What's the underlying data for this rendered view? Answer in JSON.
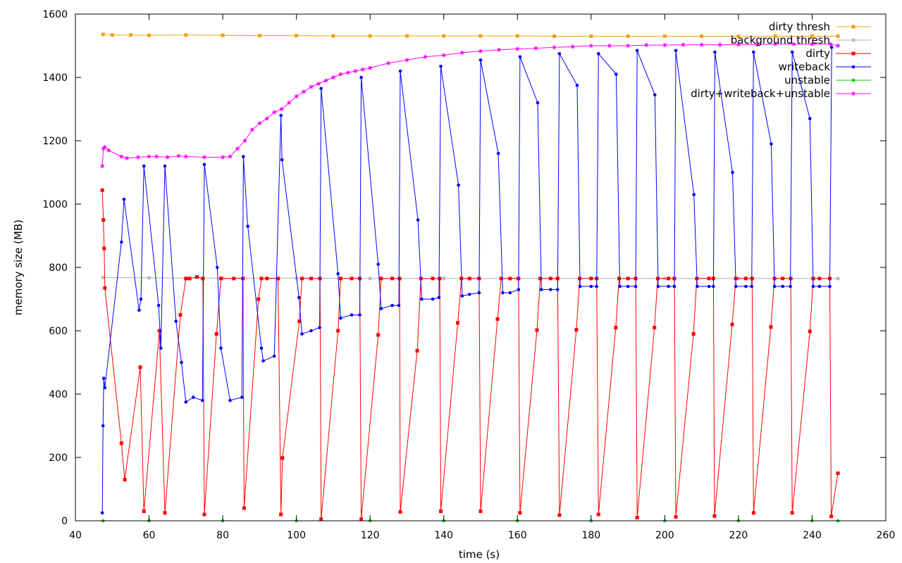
{
  "chart_data": {
    "type": "line",
    "title": "",
    "xlabel": "time (s)",
    "ylabel": "memory size (MB)",
    "xlim": [
      40,
      260
    ],
    "ylim": [
      0,
      1600
    ],
    "xticks": [
      40,
      60,
      80,
      100,
      120,
      140,
      160,
      180,
      200,
      220,
      240,
      260
    ],
    "yticks": [
      0,
      200,
      400,
      600,
      800,
      1000,
      1200,
      1400,
      1600
    ],
    "grid": false,
    "legend_position": "top-right",
    "series": [
      {
        "name": "dirty thresh",
        "color": "#f4a20f",
        "marker": "square",
        "x": [
          47.5,
          50,
          55,
          60,
          70,
          80,
          90,
          100,
          110,
          120,
          130,
          140,
          150,
          160,
          170,
          180,
          190,
          200,
          210,
          220,
          230,
          240,
          247
        ],
        "y": [
          1536,
          1534,
          1534,
          1533,
          1534,
          1533,
          1532,
          1532,
          1531,
          1531,
          1531,
          1531,
          1531,
          1531,
          1530,
          1530,
          1530,
          1530,
          1530,
          1530,
          1530,
          1530,
          1530
        ]
      },
      {
        "name": "background thresh",
        "color": "#b0b0b0",
        "marker": "cross",
        "x": [
          47.5,
          60,
          80,
          100,
          120,
          140,
          160,
          180,
          200,
          220,
          247
        ],
        "y": [
          768,
          767,
          766,
          766,
          765,
          765,
          765,
          765,
          765,
          765,
          765
        ]
      },
      {
        "name": "dirty",
        "color": "#ff0000",
        "marker": "square",
        "x": [
          47.3,
          47.6,
          47.8,
          48.0,
          52.5,
          53.4,
          57.6,
          58.6,
          62.8,
          64.3,
          68.5,
          70.0,
          71,
          73,
          74.6,
          75.0,
          78.3,
          79.5,
          83,
          85.5,
          85.8,
          89.7,
          90.5,
          92,
          95,
          95.8,
          96.2,
          100.8,
          101.5,
          104,
          106.4,
          106.7,
          111.3,
          112,
          115,
          117.2,
          117.6,
          122.2,
          123,
          126,
          128.0,
          128.2,
          132.8,
          133.8,
          137,
          138.9,
          139.2,
          143.8,
          144.8,
          147,
          149.6,
          150.0,
          154.6,
          155.6,
          158,
          160.3,
          160.7,
          165.3,
          166.2,
          169,
          170.9,
          171.4,
          176.0,
          176.9,
          180,
          181.5,
          182.0,
          186.7,
          187.6,
          190,
          192.1,
          192.5,
          197.2,
          198.1,
          201,
          202.6,
          203.0,
          207.8,
          208.7,
          212,
          213.2,
          213.5,
          218.3,
          219.3,
          222,
          223.7,
          224.1,
          228.8,
          229.8,
          232,
          234.2,
          234.6,
          239.4,
          240.3,
          242,
          244.8,
          245.2,
          247.0
        ],
        "y": [
          1044,
          950,
          860,
          735,
          245,
          130,
          485,
          30,
          600,
          25,
          650,
          765,
          765,
          770,
          765,
          20,
          590,
          765,
          765,
          765,
          40,
          700,
          765,
          765,
          765,
          20,
          198,
          630,
          765,
          765,
          765,
          5,
          600,
          765,
          765,
          765,
          5,
          587,
          765,
          765,
          765,
          28,
          537,
          765,
          765,
          765,
          30,
          625,
          765,
          765,
          765,
          30,
          637,
          765,
          765,
          765,
          25,
          602,
          765,
          765,
          765,
          18,
          603,
          765,
          765,
          765,
          20,
          610,
          765,
          765,
          765,
          10,
          610,
          765,
          765,
          765,
          12,
          590,
          765,
          765,
          765,
          15,
          620,
          765,
          765,
          765,
          25,
          612,
          765,
          765,
          765,
          25,
          598,
          765,
          765,
          765,
          14,
          150
        ]
      },
      {
        "name": "writeback",
        "color": "#0000ff",
        "marker": "circle",
        "x": [
          47.3,
          47.5,
          47.7,
          48.0,
          52.5,
          53.2,
          57.3,
          57.8,
          58.6,
          62.6,
          63.2,
          64.3,
          67.3,
          68.8,
          70.0,
          72,
          74.5,
          75.0,
          78.5,
          79.5,
          82,
          85.2,
          85.6,
          86.8,
          90.5,
          91,
          94,
          95.8,
          96.1,
          100.7,
          101.5,
          104,
          106.3,
          106.7,
          111.3,
          112,
          115,
          117.2,
          117.6,
          122.2,
          123,
          126,
          127.8,
          128.2,
          133.0,
          134,
          137,
          138.7,
          139.2,
          144.0,
          145,
          147,
          149.6,
          150.0,
          154.8,
          156,
          158,
          160.3,
          160.7,
          165.5,
          166.5,
          169,
          170.9,
          171.4,
          176.2,
          177,
          180,
          181.5,
          182.0,
          186.8,
          187.8,
          190,
          192.1,
          192.5,
          197.3,
          198.2,
          201,
          202.6,
          203.0,
          207.9,
          208.8,
          212,
          213.2,
          213.6,
          218.4,
          219.3,
          222,
          223.6,
          224.1,
          228.9,
          229.8,
          232,
          234.1,
          234.6,
          239.4,
          240.3,
          242,
          244.8,
          245.3
        ],
        "y": [
          25,
          300,
          450,
          420,
          880,
          1015,
          665,
          700,
          1120,
          680,
          545,
          1120,
          630,
          500,
          375,
          390,
          380,
          1125,
          800,
          545,
          380,
          390,
          1150,
          930,
          545,
          505,
          520,
          1280,
          1140,
          705,
          590,
          600,
          610,
          1365,
          780,
          640,
          650,
          650,
          1400,
          810,
          670,
          680,
          680,
          1420,
          950,
          700,
          700,
          705,
          1435,
          1060,
          710,
          715,
          720,
          1455,
          1160,
          720,
          720,
          730,
          1465,
          1320,
          730,
          730,
          730,
          1475,
          1375,
          740,
          740,
          740,
          1475,
          1410,
          740,
          740,
          740,
          1485,
          1345,
          740,
          740,
          740,
          1485,
          1030,
          740,
          740,
          740,
          1480,
          1100,
          740,
          740,
          740,
          1480,
          1190,
          740,
          740,
          740,
          1480,
          1270,
          740,
          740,
          740,
          1495
        ]
      },
      {
        "name": "unstable",
        "color": "#00d000",
        "marker": "circle",
        "x": [
          47.5,
          60,
          80,
          100,
          120,
          140,
          160,
          180,
          200,
          220,
          240,
          247
        ],
        "y": [
          0,
          0,
          0,
          0,
          0,
          0,
          0,
          0,
          0,
          0,
          0,
          0
        ]
      },
      {
        "name": "dirty+writeback+unstable",
        "color": "#ff00ff",
        "marker": "cross",
        "x": [
          47.3,
          47.6,
          48.0,
          49,
          52.5,
          54,
          57,
          60,
          62,
          65,
          68,
          70,
          75,
          80,
          82,
          84,
          86,
          88,
          90,
          92,
          94,
          96,
          98,
          100,
          102,
          104,
          106,
          108,
          110,
          112,
          114,
          116,
          118,
          120,
          125,
          130,
          135,
          140,
          145,
          150,
          155,
          160,
          165,
          170,
          175,
          180,
          185,
          190,
          195,
          200,
          205,
          210,
          215,
          220,
          225,
          230,
          235,
          240,
          245,
          247
        ],
        "y": [
          1120,
          1175,
          1180,
          1170,
          1150,
          1145,
          1148,
          1150,
          1150,
          1148,
          1152,
          1150,
          1148,
          1148,
          1150,
          1175,
          1200,
          1235,
          1255,
          1270,
          1290,
          1300,
          1320,
          1340,
          1355,
          1370,
          1380,
          1390,
          1400,
          1410,
          1415,
          1420,
          1425,
          1430,
          1445,
          1455,
          1465,
          1470,
          1478,
          1483,
          1487,
          1490,
          1492,
          1495,
          1497,
          1500,
          1500,
          1500,
          1502,
          1502,
          1503,
          1503,
          1503,
          1504,
          1504,
          1505,
          1505,
          1505,
          1505,
          1500
        ]
      }
    ]
  }
}
